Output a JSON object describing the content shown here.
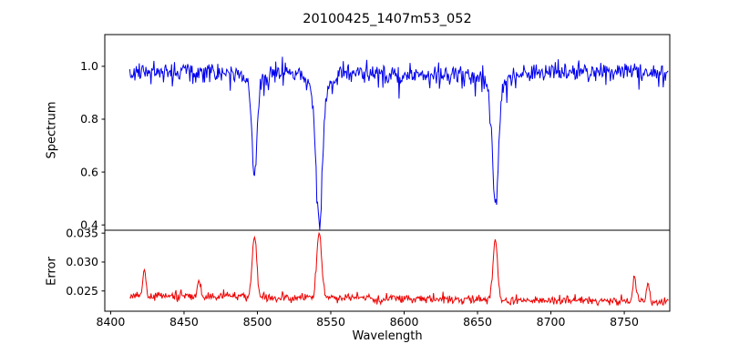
{
  "chart_data": {
    "type": "line",
    "title": "20100425_1407m53_052",
    "xlabel": "Wavelength",
    "background": "#ffffff",
    "x_range": [
      8396,
      8781
    ],
    "x_ticks": [
      8400,
      8450,
      8500,
      8550,
      8600,
      8650,
      8700,
      8750
    ],
    "x_tick_labels": [
      "8400",
      "8450",
      "8500",
      "8550",
      "8600",
      "8650",
      "8700",
      "8750"
    ],
    "data_x_start": 8413,
    "data_x_end": 8780,
    "step": 0.5,
    "seed": 1337,
    "legend": "none",
    "grid": false,
    "panels": [
      {
        "ylabel": "Spectrum",
        "color": "#0000ee",
        "y_range": [
          0.38,
          1.12
        ],
        "y_ticks": [
          1.0,
          0.8,
          0.6,
          0.4
        ],
        "y_tick_labels": [
          "1.0",
          "0.8",
          "0.6",
          "0.4"
        ],
        "continuum": 0.975,
        "noise_sigma": 0.018,
        "spike_rate": 0.05,
        "spike_depth_max": 0.09,
        "absorption_lines": [
          {
            "center": 8498.0,
            "depth": 0.38,
            "sigma": 1.7,
            "min_value": 0.6
          },
          {
            "center": 8542.1,
            "depth": 0.57,
            "sigma": 2.1,
            "min_value": 0.41
          },
          {
            "center": 8662.1,
            "depth": 0.5,
            "sigma": 1.9,
            "min_value": 0.48
          }
        ]
      },
      {
        "ylabel": "Error",
        "color": "#ee0000",
        "y_range": [
          0.0215,
          0.0355
        ],
        "y_ticks": [
          0.025,
          0.03,
          0.035
        ],
        "y_tick_labels": [
          "0.025",
          "0.030",
          "0.035"
        ],
        "baseline_left": 0.0242,
        "baseline_right": 0.0231,
        "noise_sigma": 0.00035,
        "spike_rate": 0.05,
        "spike_amp_max": 0.0014,
        "peaks": [
          {
            "center": 8423.0,
            "amp": 0.0045,
            "sigma": 1.0
          },
          {
            "center": 8460.0,
            "amp": 0.003,
            "sigma": 1.0
          },
          {
            "center": 8498.0,
            "amp": 0.0105,
            "sigma": 1.5
          },
          {
            "center": 8542.1,
            "amp": 0.0115,
            "sigma": 1.6
          },
          {
            "center": 8662.1,
            "amp": 0.0105,
            "sigma": 1.5
          },
          {
            "center": 8757.0,
            "amp": 0.004,
            "sigma": 1.2
          },
          {
            "center": 8766.0,
            "amp": 0.0035,
            "sigma": 1.0
          }
        ]
      }
    ]
  }
}
